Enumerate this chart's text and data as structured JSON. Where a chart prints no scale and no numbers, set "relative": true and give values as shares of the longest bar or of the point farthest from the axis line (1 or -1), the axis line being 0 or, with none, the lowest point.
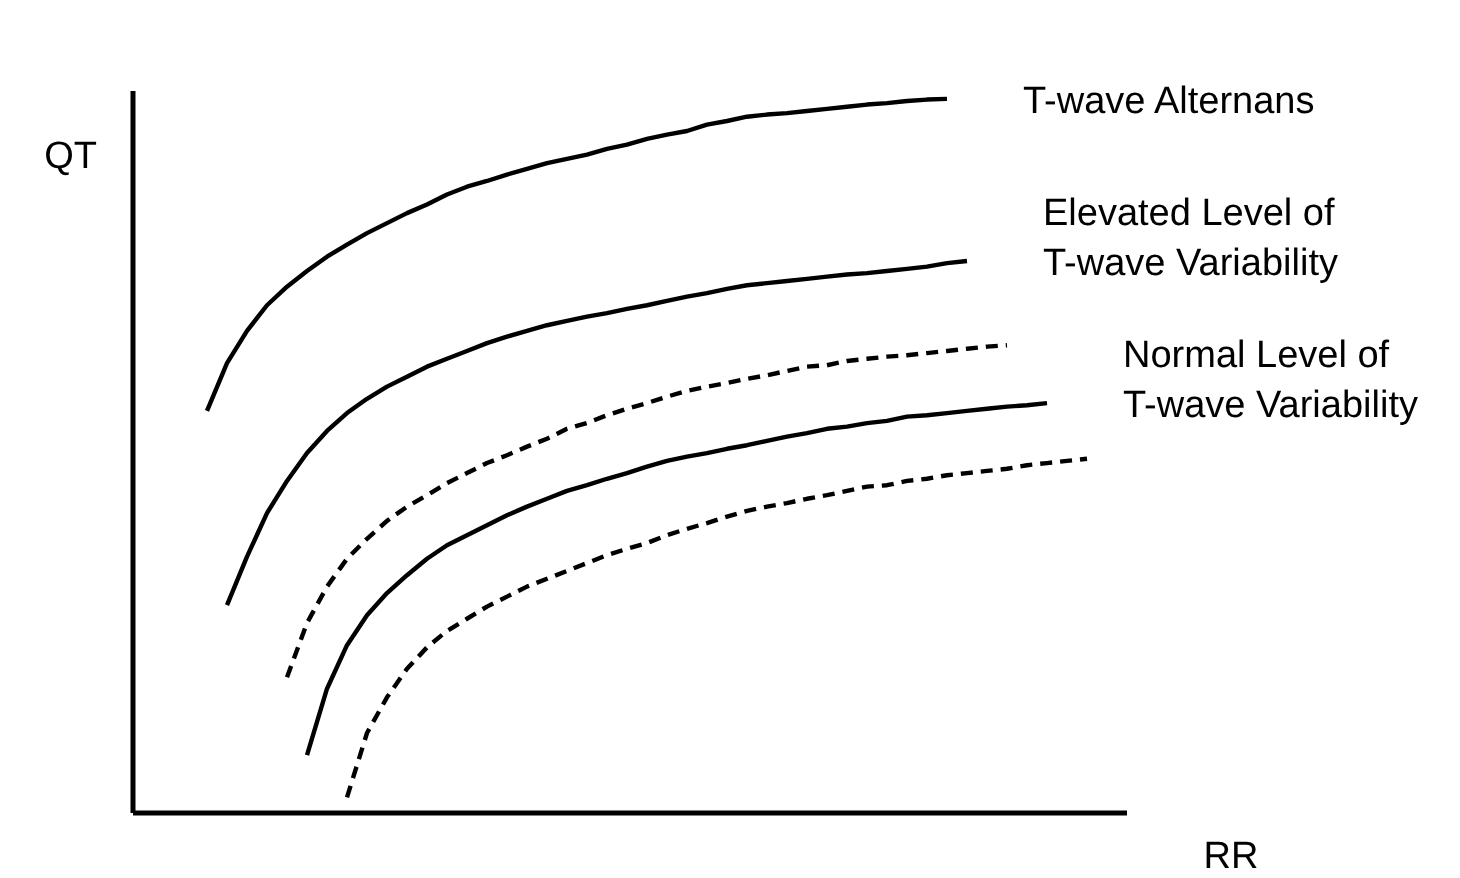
{
  "chart_data": {
    "type": "line",
    "relative": true,
    "xlabel": "RR",
    "ylabel": "QT",
    "line_style": "solid",
    "categories": [
      null,
      null,
      null,
      null,
      null,
      null,
      null,
      null,
      null,
      null,
      null,
      null,
      null,
      null,
      null,
      null,
      null,
      null,
      null,
      null,
      null,
      null,
      null,
      null,
      null,
      null,
      null,
      null,
      null,
      null,
      null,
      null,
      null,
      null,
      null,
      null,
      null,
      null,
      null,
      null,
      null,
      null,
      null,
      null,
      null
    ],
    "series": [
      {
        "name": "T-wave Alternans",
        "color": "#000000",
        "values": [
          0.563,
          0.63,
          0.675,
          0.711,
          0.737,
          0.759,
          0.779,
          0.796,
          0.812,
          0.826,
          0.84,
          0.852,
          0.866,
          0.877,
          0.885,
          0.894,
          0.902,
          0.91,
          0.916,
          0.922,
          0.93,
          0.936,
          0.944,
          0.95,
          0.955,
          0.964,
          0.969,
          0.975,
          0.978,
          0.98,
          0.983,
          0.986,
          0.989,
          0.992,
          0.994,
          0.997,
          0.999,
          1,
          null,
          null,
          null,
          null,
          null,
          null,
          null
        ]
      },
      {
        "name": "Elevated Level of T-wave Variability",
        "color": "#000000",
        "values": [
          null,
          0.291,
          0.359,
          0.42,
          0.465,
          0.504,
          0.535,
          0.56,
          0.58,
          0.597,
          0.611,
          0.625,
          0.636,
          0.647,
          0.658,
          0.667,
          0.675,
          0.683,
          0.689,
          0.695,
          0.7,
          0.706,
          0.711,
          0.717,
          0.723,
          0.728,
          0.734,
          0.739,
          0.742,
          0.745,
          0.748,
          0.751,
          0.754,
          0.756,
          0.759,
          0.762,
          0.765,
          0.77,
          0.773,
          null,
          null,
          null,
          null,
          null,
          null
        ]
      },
      {
        "color": "#000000",
        "line_style": "dashed",
        "values": [
          null,
          null,
          null,
          null,
          0.19,
          0.266,
          0.317,
          0.356,
          0.384,
          0.409,
          0.429,
          0.445,
          0.462,
          0.476,
          0.49,
          0.501,
          0.513,
          0.524,
          0.538,
          0.546,
          0.557,
          0.566,
          0.574,
          0.583,
          0.591,
          0.597,
          0.602,
          0.608,
          0.613,
          0.619,
          0.625,
          0.627,
          0.633,
          0.636,
          0.639,
          0.641,
          0.644,
          0.647,
          0.65,
          0.653,
          0.655,
          null,
          null,
          null,
          null
        ]
      },
      {
        "name": "Normal Level of T-wave Variability",
        "color": "#000000",
        "values": [
          null,
          null,
          null,
          null,
          null,
          0.081,
          0.174,
          0.235,
          0.277,
          0.308,
          0.333,
          0.356,
          0.375,
          0.389,
          0.403,
          0.417,
          0.429,
          0.44,
          0.451,
          0.459,
          0.468,
          0.476,
          0.485,
          0.493,
          0.499,
          0.504,
          0.51,
          0.515,
          0.521,
          0.527,
          0.532,
          0.538,
          0.541,
          0.546,
          0.549,
          0.555,
          0.557,
          0.56,
          0.563,
          0.566,
          0.569,
          0.571,
          0.574,
          null,
          null
        ]
      },
      {
        "color": "#000000",
        "line_style": "dashed",
        "values": [
          null,
          null,
          null,
          null,
          null,
          null,
          null,
          0.022,
          0.112,
          0.162,
          0.202,
          0.232,
          0.255,
          0.272,
          0.289,
          0.303,
          0.317,
          0.328,
          0.339,
          0.35,
          0.361,
          0.37,
          0.378,
          0.389,
          0.398,
          0.406,
          0.415,
          0.423,
          0.429,
          0.434,
          0.44,
          0.445,
          0.451,
          0.457,
          0.459,
          0.465,
          0.468,
          0.473,
          0.476,
          0.479,
          0.482,
          0.487,
          0.49,
          0.493,
          0.496
        ]
      }
    ]
  }
}
